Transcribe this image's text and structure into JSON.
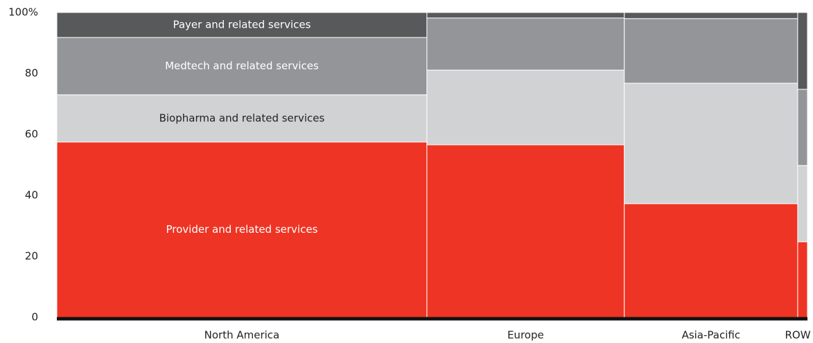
{
  "chart_data": {
    "type": "marimekko",
    "categories": [
      "North America",
      "Europe",
      "Asia-Pacific",
      "ROW"
    ],
    "widths": [
      49.3,
      26.3,
      23.1,
      1.3
    ],
    "series": [
      {
        "name": "Provider and related services",
        "color": "#ee3424",
        "label_color": "#ffffff",
        "values": [
          57.5,
          56.6,
          37.3,
          24.8
        ]
      },
      {
        "name": "Biopharma and related services",
        "color": "#d1d2d4",
        "label_color": "#222222",
        "values": [
          15.5,
          24.5,
          39.5,
          25
        ]
      },
      {
        "name": "Medtech and related services",
        "color": "#939598",
        "label_color": "#ffffff",
        "values": [
          18.8,
          17.1,
          21.2,
          25
        ]
      },
      {
        "name": "Payer and related services",
        "color": "#58595b",
        "label_color": "#ffffff",
        "values": [
          8.2,
          1.8,
          2,
          25.2
        ]
      }
    ],
    "ylim": [
      0,
      100
    ],
    "yticks": [
      0,
      20,
      40,
      60,
      80,
      {
        "value": 100,
        "label": "100%"
      }
    ]
  }
}
